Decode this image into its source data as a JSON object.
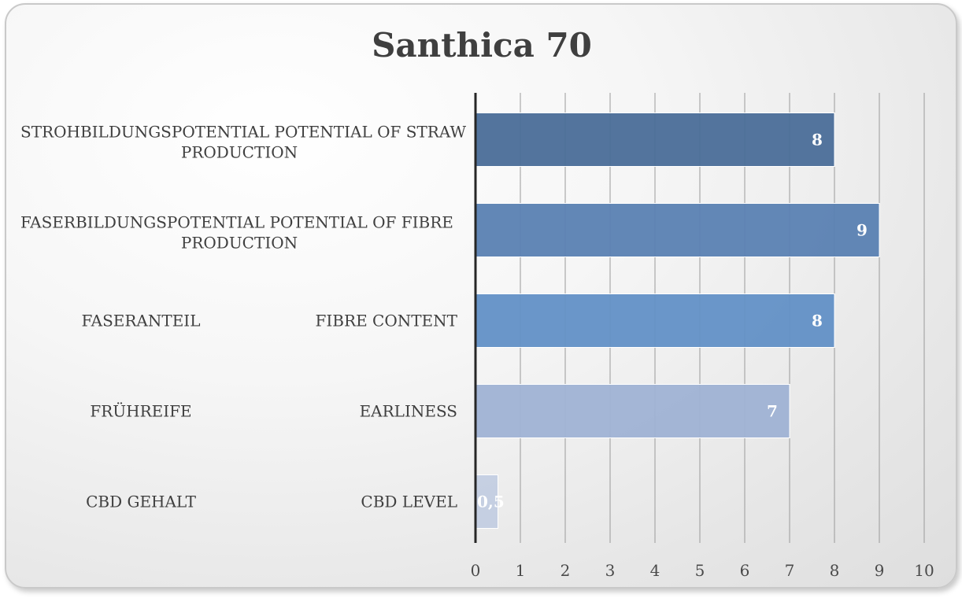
{
  "chart_data": {
    "type": "bar",
    "orientation": "horizontal",
    "title": "Santhica 70",
    "categories": [
      {
        "label_de": "STROHBILDUNGSPOTENTIAL",
        "label_en": "POTENTIAL OF STRAW PRODUCTION"
      },
      {
        "label_de": "FASERBILDUNGSPOTENTIAL",
        "label_en": "POTENTIAL OF FIBRE PRODUCTION"
      },
      {
        "label_de": "FASERANTEIL",
        "label_en": "FIBRE CONTENT"
      },
      {
        "label_de": "FRÜHREIFE",
        "label_en": "EARLINESS"
      },
      {
        "label_de": "CBD GEHALT",
        "label_en": "CBD LEVEL"
      }
    ],
    "values": [
      8,
      9,
      8,
      7,
      0.5
    ],
    "data_labels": [
      "8",
      "9",
      "8",
      "7",
      "0,5"
    ],
    "bar_colors": [
      "#4a6d98",
      "#5a81b2",
      "#6290c6",
      "#9fb2d4",
      "#c3cde2"
    ],
    "xlim": [
      0,
      10
    ],
    "xticks": [
      0,
      1,
      2,
      3,
      4,
      5,
      6,
      7,
      8,
      9,
      10
    ],
    "grid": true,
    "legend": "none"
  }
}
